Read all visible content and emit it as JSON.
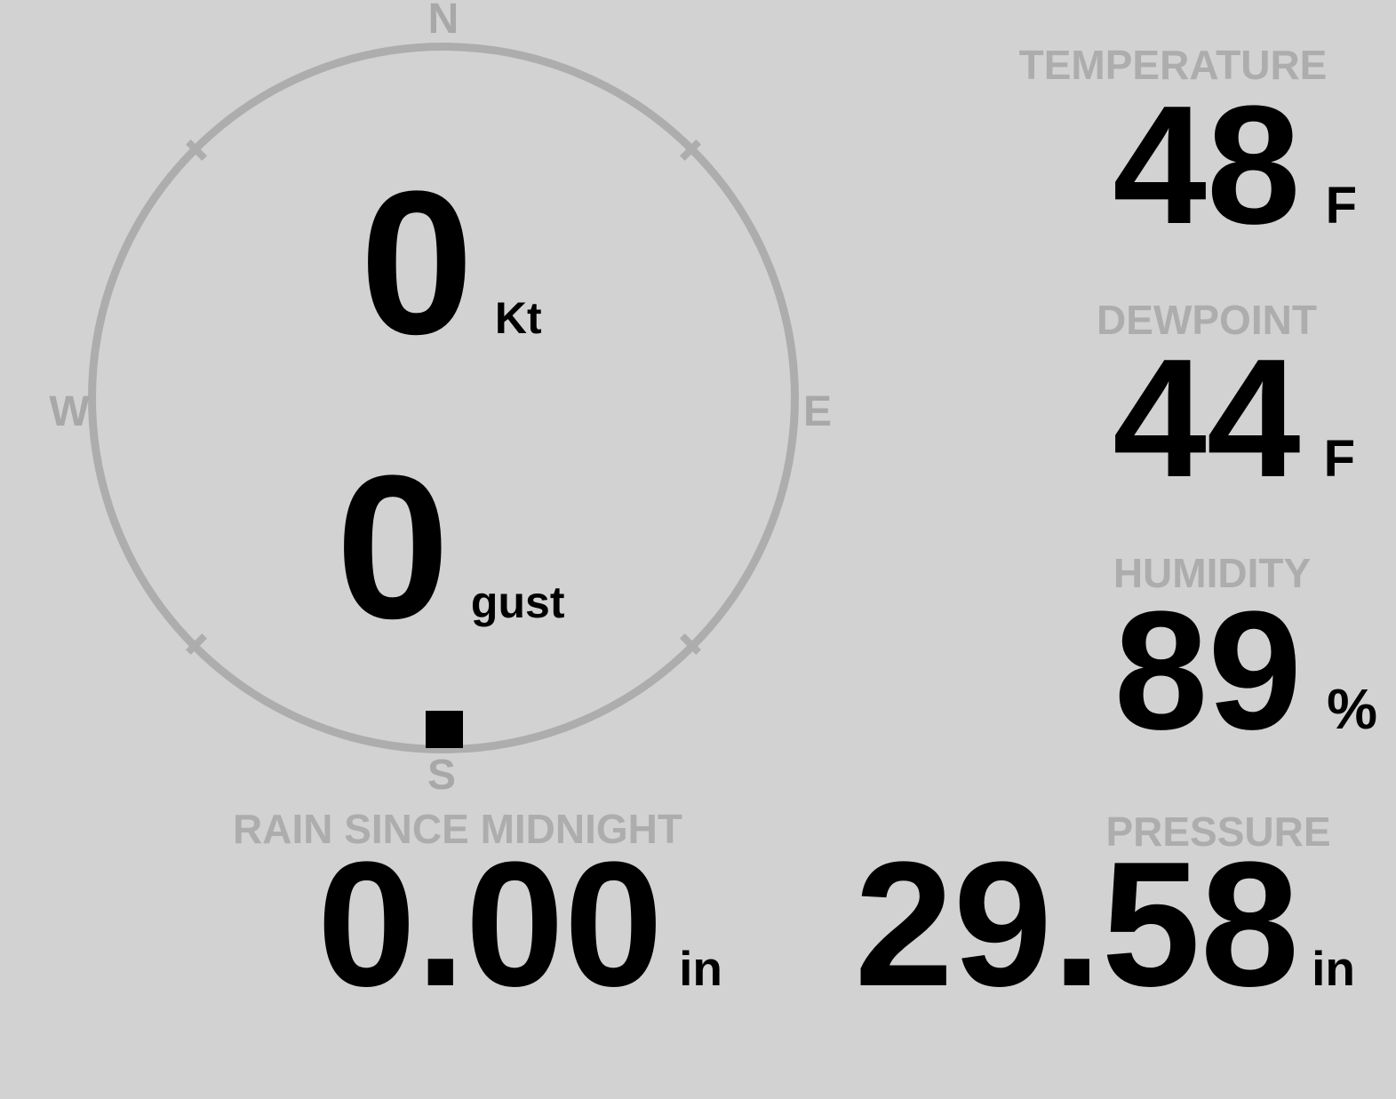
{
  "colors": {
    "background": "#d2d2d2",
    "muted_gray": "#adadad",
    "value_black": "#000000"
  },
  "compass": {
    "north_label": "N",
    "east_label": "E",
    "south_label": "S",
    "west_label": "W",
    "marker_icon": "wind-direction-marker",
    "wind_speed": {
      "value": "0",
      "unit": "Kt"
    },
    "wind_gust": {
      "value": "0",
      "unit": "gust"
    }
  },
  "metrics": {
    "temperature": {
      "label": "TEMPERATURE",
      "value": "48",
      "unit": "F"
    },
    "dewpoint": {
      "label": "DEWPOINT",
      "value": "44",
      "unit": "F"
    },
    "humidity": {
      "label": "HUMIDITY",
      "value": "89",
      "unit": "%"
    },
    "rain_since_midnight": {
      "label": "RAIN SINCE MIDNIGHT",
      "value": "0.00",
      "unit": "in"
    },
    "pressure": {
      "label": "PRESSURE",
      "value": "29.58",
      "unit": "in"
    }
  }
}
